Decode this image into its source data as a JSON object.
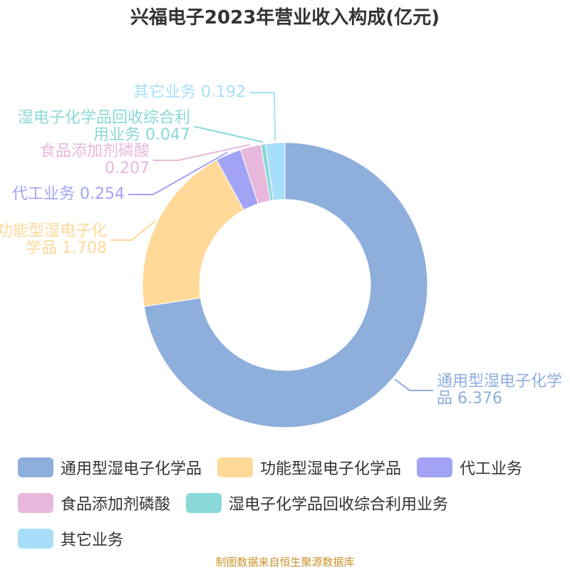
{
  "chart_data": {
    "type": "pie",
    "title": "兴福电子2023年营业收入构成(亿元)",
    "categories": [
      "通用型湿电子化学品",
      "功能型湿电子化学品",
      "代工业务",
      "食品添加剂磷酸",
      "湿电子化学品回收综合利用业务",
      "其它业务"
    ],
    "values": [
      6.376,
      1.708,
      0.254,
      0.207,
      0.047,
      0.192
    ],
    "colors": [
      "#8eaedb",
      "#fed998",
      "#a3a3f5",
      "#e8b8dc",
      "#8ad8d8",
      "#a8dff8"
    ],
    "source": "制图数据来自恒生聚源数据库"
  }
}
